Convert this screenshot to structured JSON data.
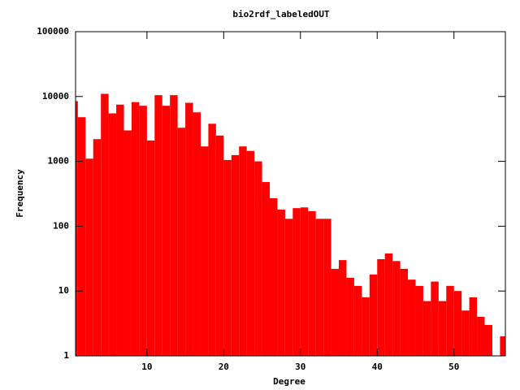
{
  "chart_data": {
    "type": "histogram",
    "title": "bio2rdf_labeledOUT",
    "xlabel": "Degree",
    "ylabel": "Frequency",
    "bins": [
      0,
      1,
      2,
      3,
      4,
      5,
      6,
      7,
      8,
      9,
      10,
      11,
      12,
      13,
      14,
      15,
      16,
      17,
      18,
      19,
      20,
      21,
      22,
      23,
      24,
      25,
      26,
      27,
      28,
      29,
      30,
      31,
      32,
      33,
      34,
      35,
      36,
      37,
      38,
      39,
      40,
      41,
      42,
      43,
      44,
      45,
      46,
      47,
      48,
      49,
      50,
      51,
      52,
      53,
      54,
      55,
      56,
      57
    ],
    "values": [
      8500,
      4800,
      1100,
      2200,
      11000,
      5500,
      7500,
      3000,
      8200,
      7200,
      2100,
      10500,
      7200,
      10500,
      3300,
      8000,
      5700,
      1700,
      3800,
      2500,
      1050,
      1250,
      1700,
      1450,
      1000,
      480,
      270,
      180,
      130,
      190,
      195,
      170,
      130,
      130,
      22,
      30,
      16,
      12,
      8,
      18,
      31,
      38,
      29,
      22,
      15,
      12,
      7,
      14,
      7,
      12,
      10,
      5,
      8,
      4,
      3,
      null,
      2
    ],
    "color": "#ff0000",
    "log_y": true,
    "xlim": [
      0.7,
      56.7
    ],
    "xticks": [
      10,
      20,
      30,
      40,
      50
    ],
    "ylim": [
      1,
      100000
    ],
    "yticks": [
      1,
      10,
      100,
      1000,
      10000,
      100000
    ]
  }
}
